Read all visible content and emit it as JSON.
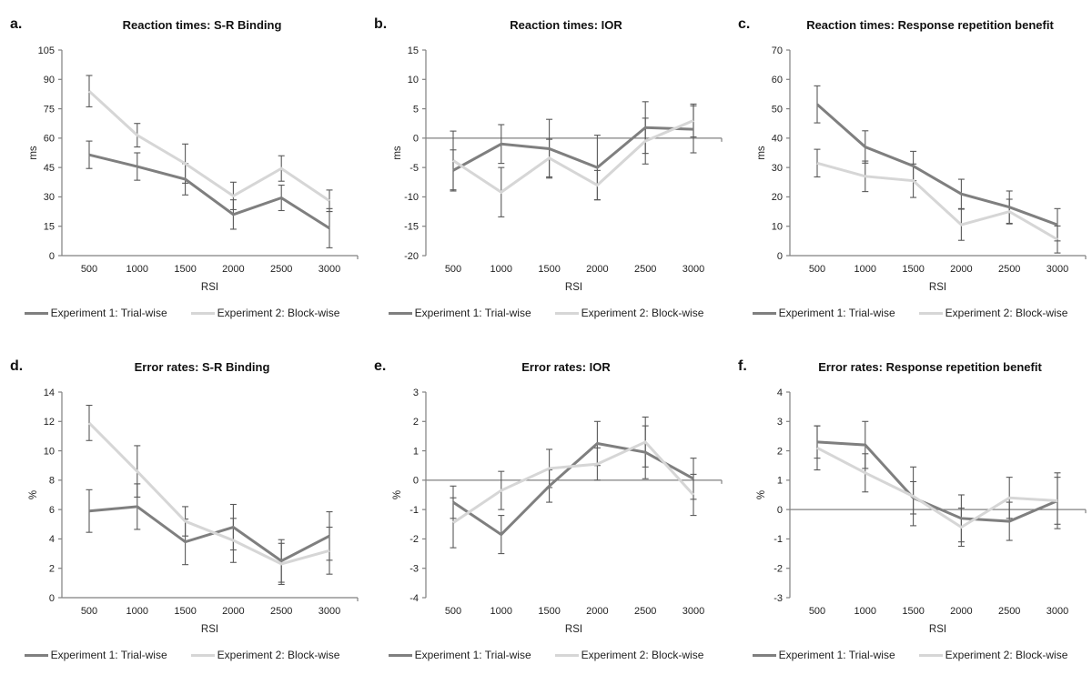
{
  "legend": {
    "series1_label": "Experiment 1: Trial-wise",
    "series2_label": "Experiment 2: Block-wise"
  },
  "colors": {
    "series1": "#7f7f7f",
    "series2": "#d6d6d6",
    "error_bar": "#595959",
    "axis": "#808080",
    "text": "#1f1f1f",
    "title": "#111111",
    "background": "#ffffff"
  },
  "chart_data": [
    {
      "panel_label": "a.",
      "title": "Reaction times: S-R Binding",
      "type": "line",
      "xlabel": "RSI",
      "ylabel": "ms",
      "ylim": [
        0,
        105
      ],
      "ytick_step": 15,
      "x": [
        "500",
        "1000",
        "1500",
        "2000",
        "2500",
        "3000"
      ],
      "grid": false,
      "legend_position": "bottom",
      "series": [
        {
          "name": "Experiment 1: Trial-wise",
          "values": [
            51.5,
            45.5,
            39,
            21,
            29.5,
            14
          ],
          "errors": [
            7,
            7,
            8,
            7.5,
            6.5,
            10
          ]
        },
        {
          "name": "Experiment 2: Block-wise",
          "values": [
            84,
            61.5,
            47,
            30.5,
            44.5,
            28
          ],
          "errors": [
            8,
            6,
            10,
            7,
            6.5,
            5.5
          ]
        }
      ]
    },
    {
      "panel_label": "b.",
      "title": "Reaction times: IOR",
      "type": "line",
      "xlabel": "RSI",
      "ylabel": "ms",
      "ylim": [
        -20,
        15
      ],
      "ytick_step": 5,
      "x": [
        "500",
        "1000",
        "1500",
        "2000",
        "2500",
        "3000"
      ],
      "grid": false,
      "legend_position": "bottom",
      "series": [
        {
          "name": "Experiment 1: Trial-wise",
          "values": [
            -5.5,
            -1,
            -1.8,
            -5,
            1.8,
            1.5
          ],
          "errors": [
            3.5,
            3.3,
            5,
            5.5,
            4.4,
            4
          ]
        },
        {
          "name": "Experiment 2: Block-wise",
          "values": [
            -3.8,
            -9.2,
            -3.4,
            -8,
            -0.5,
            3
          ],
          "errors": [
            5,
            4.2,
            3.2,
            2.5,
            3.9,
            2.8
          ]
        }
      ]
    },
    {
      "panel_label": "c.",
      "title": "Reaction times: Response repetition benefit",
      "type": "line",
      "xlabel": "RSI",
      "ylabel": "ms",
      "ylim": [
        0,
        70
      ],
      "ytick_step": 10,
      "x": [
        "500",
        "1000",
        "1500",
        "2000",
        "2500",
        "3000"
      ],
      "grid": false,
      "legend_position": "bottom",
      "series": [
        {
          "name": "Experiment 1: Trial-wise",
          "values": [
            51.5,
            37,
            30.5,
            21,
            16.5,
            10.5
          ],
          "errors": [
            6.3,
            5.5,
            5,
            5,
            5.5,
            5.5
          ]
        },
        {
          "name": "Experiment 2: Block-wise",
          "values": [
            31.5,
            27,
            25.5,
            10.5,
            15,
            5.5
          ],
          "errors": [
            4.7,
            5.2,
            5.7,
            5.3,
            4.2,
            4.6
          ]
        }
      ]
    },
    {
      "panel_label": "d.",
      "title": "Error rates: S-R Binding",
      "type": "line",
      "xlabel": "RSI",
      "ylabel": "%",
      "ylim": [
        0,
        14
      ],
      "ytick_step": 2,
      "x": [
        "500",
        "1000",
        "1500",
        "2000",
        "2500",
        "3000"
      ],
      "grid": false,
      "legend_position": "bottom",
      "series": [
        {
          "name": "Experiment 1: Trial-wise",
          "values": [
            5.9,
            6.2,
            3.8,
            4.8,
            2.5,
            4.2
          ],
          "errors": [
            1.45,
            1.55,
            1.55,
            1.55,
            1.45,
            1.65
          ]
        },
        {
          "name": "Experiment 2: Block-wise",
          "values": [
            11.9,
            8.6,
            5.2,
            3.9,
            2.3,
            3.2
          ],
          "errors": [
            1.2,
            1.75,
            1.0,
            1.5,
            1.4,
            1.6
          ]
        }
      ]
    },
    {
      "panel_label": "e.",
      "title": "Error rates: IOR",
      "type": "line",
      "xlabel": "RSI",
      "ylabel": "%",
      "ylim": [
        -4,
        3
      ],
      "ytick_step": 1,
      "x": [
        "500",
        "1000",
        "1500",
        "2000",
        "2500",
        "3000"
      ],
      "grid": false,
      "legend_position": "bottom",
      "series": [
        {
          "name": "Experiment 1: Trial-wise",
          "values": [
            -0.75,
            -1.85,
            -0.2,
            1.25,
            0.95,
            0.05
          ],
          "errors": [
            0.55,
            0.65,
            0.55,
            0.75,
            0.9,
            0.7
          ]
        },
        {
          "name": "Experiment 2: Block-wise",
          "values": [
            -1.45,
            -0.35,
            0.4,
            0.55,
            1.3,
            -0.5
          ],
          "errors": [
            0.85,
            0.65,
            0.65,
            0.55,
            0.85,
            0.7
          ]
        }
      ]
    },
    {
      "panel_label": "f.",
      "title": "Error rates: Response repetition benefit",
      "type": "line",
      "xlabel": "RSI",
      "ylabel": "%",
      "ylim": [
        -3,
        4
      ],
      "ytick_step": 1,
      "x": [
        "500",
        "1000",
        "1500",
        "2000",
        "2500",
        "3000"
      ],
      "grid": false,
      "legend_position": "bottom",
      "series": [
        {
          "name": "Experiment 1: Trial-wise",
          "values": [
            2.3,
            2.2,
            0.4,
            -0.3,
            -0.4,
            0.3
          ],
          "errors": [
            0.55,
            0.8,
            0.55,
            0.8,
            0.65,
            0.8
          ]
        },
        {
          "name": "Experiment 2: Block-wise",
          "values": [
            2.1,
            1.25,
            0.45,
            -0.6,
            0.4,
            0.3
          ],
          "errors": [
            0.75,
            0.65,
            1.0,
            0.65,
            0.7,
            0.95
          ]
        }
      ]
    }
  ]
}
